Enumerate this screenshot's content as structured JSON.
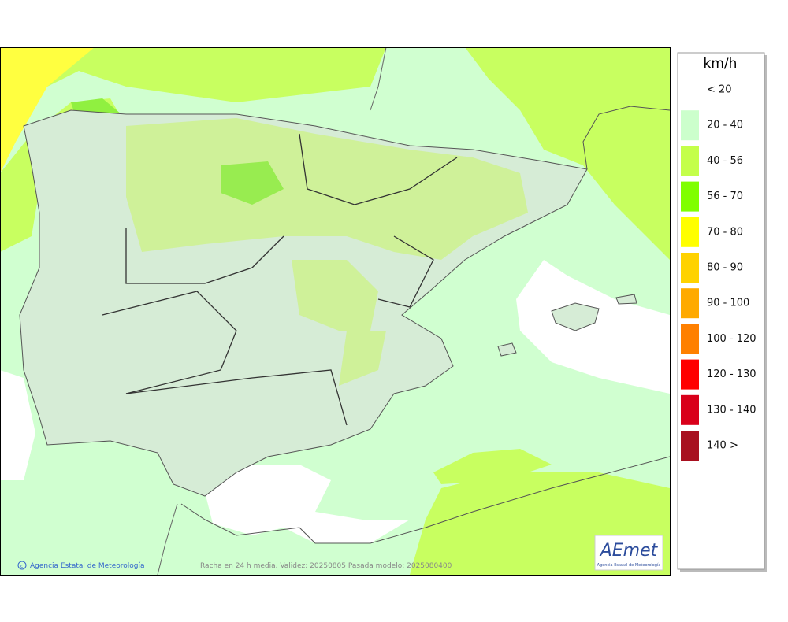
{
  "legend": {
    "unit": "km/h",
    "items": [
      {
        "label": "< 20",
        "color": "#ffffff"
      },
      {
        "label": "20 - 40",
        "color": "#ccffcc"
      },
      {
        "label": "40 - 56",
        "color": "#c4ff4a"
      },
      {
        "label": "56 - 70",
        "color": "#80ff00"
      },
      {
        "label": "70 - 80",
        "color": "#ffff00"
      },
      {
        "label": "80 - 90",
        "color": "#ffd200"
      },
      {
        "label": "90 - 100",
        "color": "#ffaa00"
      },
      {
        "label": "100 - 120",
        "color": "#ff8000"
      },
      {
        "label": "120 - 130",
        "color": "#ff0000"
      },
      {
        "label": "130 - 140",
        "color": "#d9001a"
      },
      {
        "label": "140 >",
        "color": "#a8101f"
      }
    ]
  },
  "footer": {
    "credit": "Agencia Estatal de Meteorología",
    "caption": "Racha en 24 h media. Validez: 20250805 Pasada modelo: 2025080400"
  },
  "logo": {
    "name": "AEmet",
    "subtitle": "Agencia Estatal de Meteorología"
  }
}
